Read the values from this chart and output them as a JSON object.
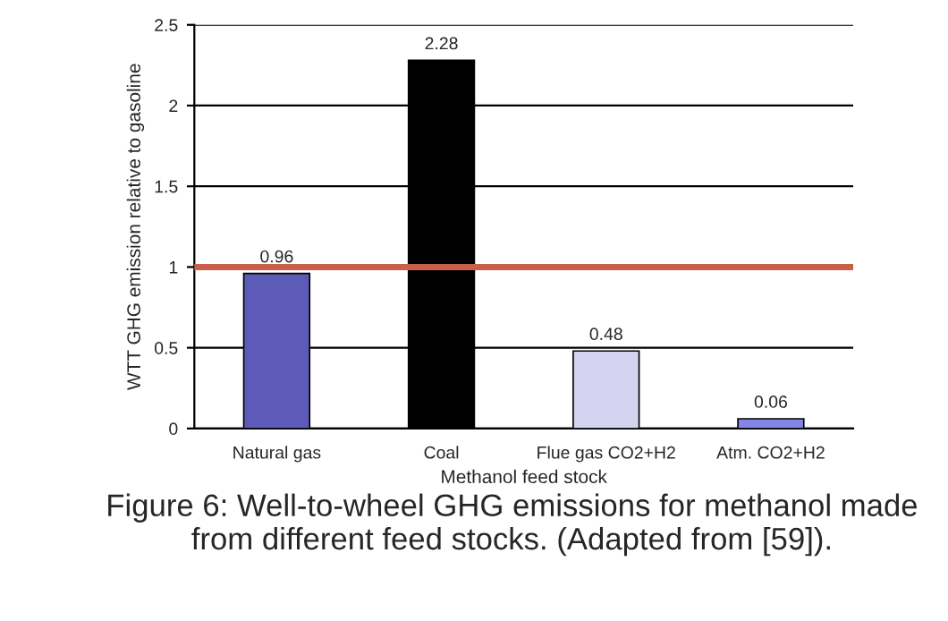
{
  "chart_data": {
    "type": "bar",
    "xlabel": "Methanol feed stock",
    "ylabel": "WTT GHG emission relative to gasoline",
    "categories": [
      "Natural gas",
      "Coal",
      "Flue gas CO2+H2",
      "Atm. CO2+H2"
    ],
    "values": [
      0.96,
      2.28,
      0.48,
      0.06
    ],
    "colors": [
      "#5c5cb8",
      "#000000",
      "#d4d4f0",
      "#8585e6"
    ],
    "data_labels": true,
    "ylim": [
      0,
      2.5
    ],
    "yticks": [
      0,
      0.5,
      1,
      1.5,
      2,
      2.5
    ],
    "grid": "y",
    "ref_lines": [
      {
        "axis": "y",
        "value": 1,
        "color": "#c8604c"
      }
    ],
    "annotations": [
      "Figure 6: Well-to-wheel GHG emissions for methanol made from different feed stocks. (Adapted from [59])."
    ]
  }
}
